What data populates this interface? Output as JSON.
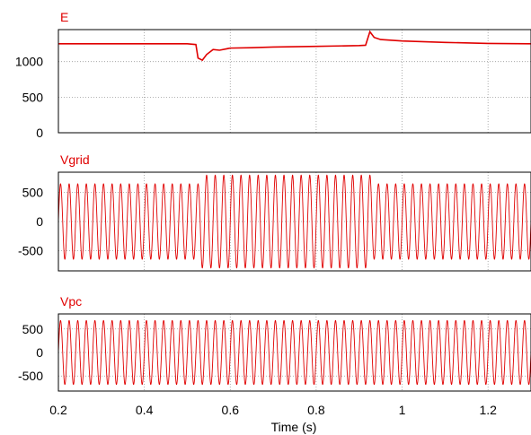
{
  "trace_color": "#e00000",
  "chart_data": [
    {
      "type": "line",
      "series": [
        {
          "name": "E"
        }
      ],
      "xlim": [
        0.2,
        1.3
      ],
      "ylim": [
        0,
        1450
      ],
      "yticks": [
        0,
        500,
        1000
      ],
      "ytick_labels": [
        "0",
        "500",
        "1000"
      ],
      "xticks": [
        0.2,
        0.4,
        0.6,
        0.8,
        1.0,
        1.2
      ],
      "grid": true,
      "points": [
        [
          0.2,
          1250
        ],
        [
          0.5,
          1250
        ],
        [
          0.52,
          1240
        ],
        [
          0.525,
          1050
        ],
        [
          0.535,
          1020
        ],
        [
          0.545,
          1100
        ],
        [
          0.56,
          1170
        ],
        [
          0.575,
          1160
        ],
        [
          0.6,
          1190
        ],
        [
          0.65,
          1195
        ],
        [
          0.7,
          1205
        ],
        [
          0.75,
          1210
        ],
        [
          0.8,
          1215
        ],
        [
          0.85,
          1220
        ],
        [
          0.9,
          1225
        ],
        [
          0.915,
          1230
        ],
        [
          0.925,
          1420
        ],
        [
          0.935,
          1340
        ],
        [
          0.95,
          1310
        ],
        [
          1.0,
          1290
        ],
        [
          1.1,
          1270
        ],
        [
          1.2,
          1255
        ],
        [
          1.3,
          1250
        ]
      ]
    },
    {
      "type": "line",
      "series": [
        {
          "name": "Vgrid"
        }
      ],
      "xlim": [
        0.2,
        1.3
      ],
      "ylim": [
        -850,
        850
      ],
      "yticks": [
        -500,
        0,
        500
      ],
      "ytick_labels": [
        "-500",
        "0",
        "500"
      ],
      "xticks": [
        0.2,
        0.4,
        0.6,
        0.8,
        1.0,
        1.2
      ],
      "grid": true,
      "frequency_hz": 50,
      "segments": [
        {
          "x": [
            0.2,
            0.53
          ],
          "amplitude": 650
        },
        {
          "x": [
            0.53,
            0.93
          ],
          "amplitude": 800
        },
        {
          "x": [
            0.93,
            1.3
          ],
          "amplitude": 650
        }
      ]
    },
    {
      "type": "line",
      "series": [
        {
          "name": "Vpc"
        }
      ],
      "xlim": [
        0.2,
        1.3
      ],
      "ylim": [
        -820,
        820
      ],
      "yticks": [
        -500,
        0,
        500
      ],
      "ytick_labels": [
        "-500",
        "0",
        "500"
      ],
      "xticks": [
        0.2,
        0.4,
        0.6,
        0.8,
        1.0,
        1.2
      ],
      "xtick_labels": [
        "0.2",
        "0.4",
        "0.6",
        "0.8",
        "1",
        "1.2"
      ],
      "xlabel": "Time (s)",
      "grid": true,
      "frequency_hz": 50,
      "segments": [
        {
          "x": [
            0.2,
            1.3
          ],
          "amplitude": 680
        }
      ]
    }
  ]
}
